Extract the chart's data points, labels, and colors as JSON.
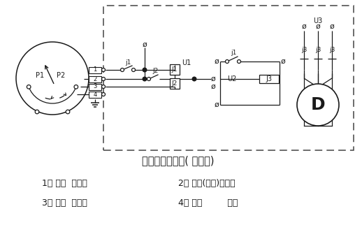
{
  "title": "电气线路示意图( 供参考)",
  "legend1a": "1－ 黄色  公用线",
  "legend1b": "2－ 绿色(蓝色)接通线",
  "legend2a": "3－ 红色  断开线",
  "legend2b": "4－ 黑色         地线",
  "bg_color": "#ffffff",
  "line_color": "#1a1a1a"
}
